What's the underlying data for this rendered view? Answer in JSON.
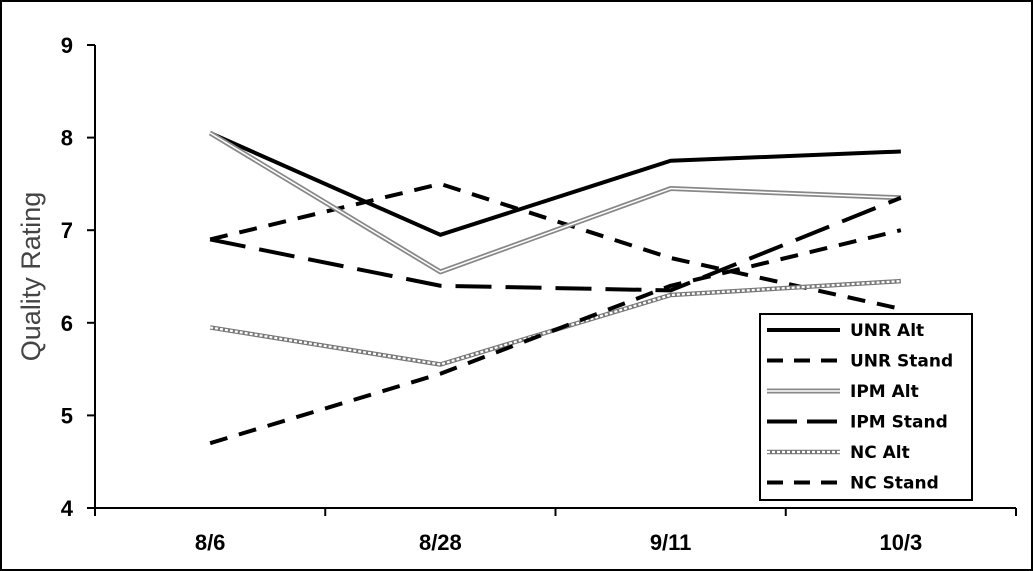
{
  "chart_data": {
    "type": "line",
    "ylabel": "Quality Rating",
    "xlabel": "",
    "ylim": [
      4,
      9
    ],
    "yticks": [
      4,
      5,
      6,
      7,
      8,
      9
    ],
    "grid": false,
    "legend_position": "bottom-right",
    "categories": [
      "8/6",
      "8/28",
      "9/11",
      "10/3"
    ],
    "series": [
      {
        "name": "UNR Alt",
        "style": "solid",
        "values": [
          8.05,
          6.95,
          7.75,
          7.85
        ]
      },
      {
        "name": "UNR Stand",
        "style": "dashed",
        "values": [
          6.9,
          7.5,
          6.7,
          6.15
        ]
      },
      {
        "name": "IPM Alt",
        "style": "double-gray",
        "values": [
          8.05,
          6.55,
          7.45,
          7.35
        ]
      },
      {
        "name": "IPM Stand",
        "style": "long-dash",
        "values": [
          6.9,
          6.4,
          6.35,
          7.35
        ]
      },
      {
        "name": "NC Alt",
        "style": "dotted-gray",
        "values": [
          5.95,
          5.55,
          6.3,
          6.45
        ]
      },
      {
        "name": "NC Stand",
        "style": "dashed",
        "values": [
          4.7,
          5.45,
          6.4,
          7.0
        ]
      }
    ]
  }
}
